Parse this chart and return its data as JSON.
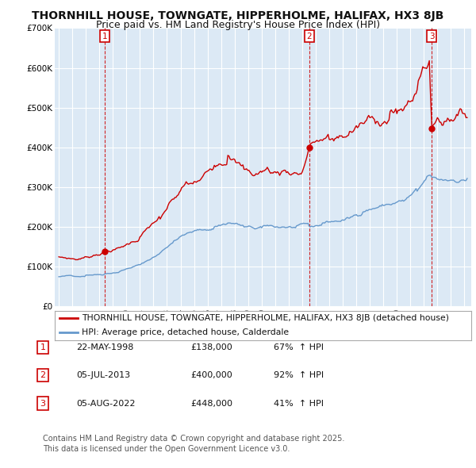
{
  "title": "THORNHILL HOUSE, TOWNGATE, HIPPERHOLME, HALIFAX, HX3 8JB",
  "subtitle": "Price paid vs. HM Land Registry's House Price Index (HPI)",
  "ylim": [
    0,
    700000
  ],
  "yticks": [
    0,
    100000,
    200000,
    300000,
    400000,
    500000,
    600000,
    700000
  ],
  "ytick_labels": [
    "£0",
    "£100K",
    "£200K",
    "£300K",
    "£400K",
    "£500K",
    "£600K",
    "£700K"
  ],
  "xlim_start": 1994.7,
  "xlim_end": 2025.5,
  "background_color": "#ffffff",
  "plot_bg_color": "#dce9f5",
  "grid_color": "#ffffff",
  "red_line_color": "#cc0000",
  "blue_line_color": "#6699cc",
  "sale_marker_color": "#cc0000",
  "vline_color": "#cc0000",
  "transactions": [
    {
      "num": 1,
      "date_label": "22-MAY-1998",
      "year": 1998.39,
      "price": 138000,
      "pct": "67%",
      "dir": "↑"
    },
    {
      "num": 2,
      "date_label": "05-JUL-2013",
      "year": 2013.51,
      "price": 400000,
      "pct": "92%",
      "dir": "↑"
    },
    {
      "num": 3,
      "date_label": "05-AUG-2022",
      "year": 2022.59,
      "price": 448000,
      "pct": "41%",
      "dir": "↑"
    }
  ],
  "legend_red_label": "THORNHILL HOUSE, TOWNGATE, HIPPERHOLME, HALIFAX, HX3 8JB (detached house)",
  "legend_blue_label": "HPI: Average price, detached house, Calderdale",
  "footnote": "Contains HM Land Registry data © Crown copyright and database right 2025.\nThis data is licensed under the Open Government Licence v3.0.",
  "title_fontsize": 10,
  "subtitle_fontsize": 9,
  "tick_fontsize": 7.5,
  "legend_fontsize": 7.8,
  "table_fontsize": 8
}
